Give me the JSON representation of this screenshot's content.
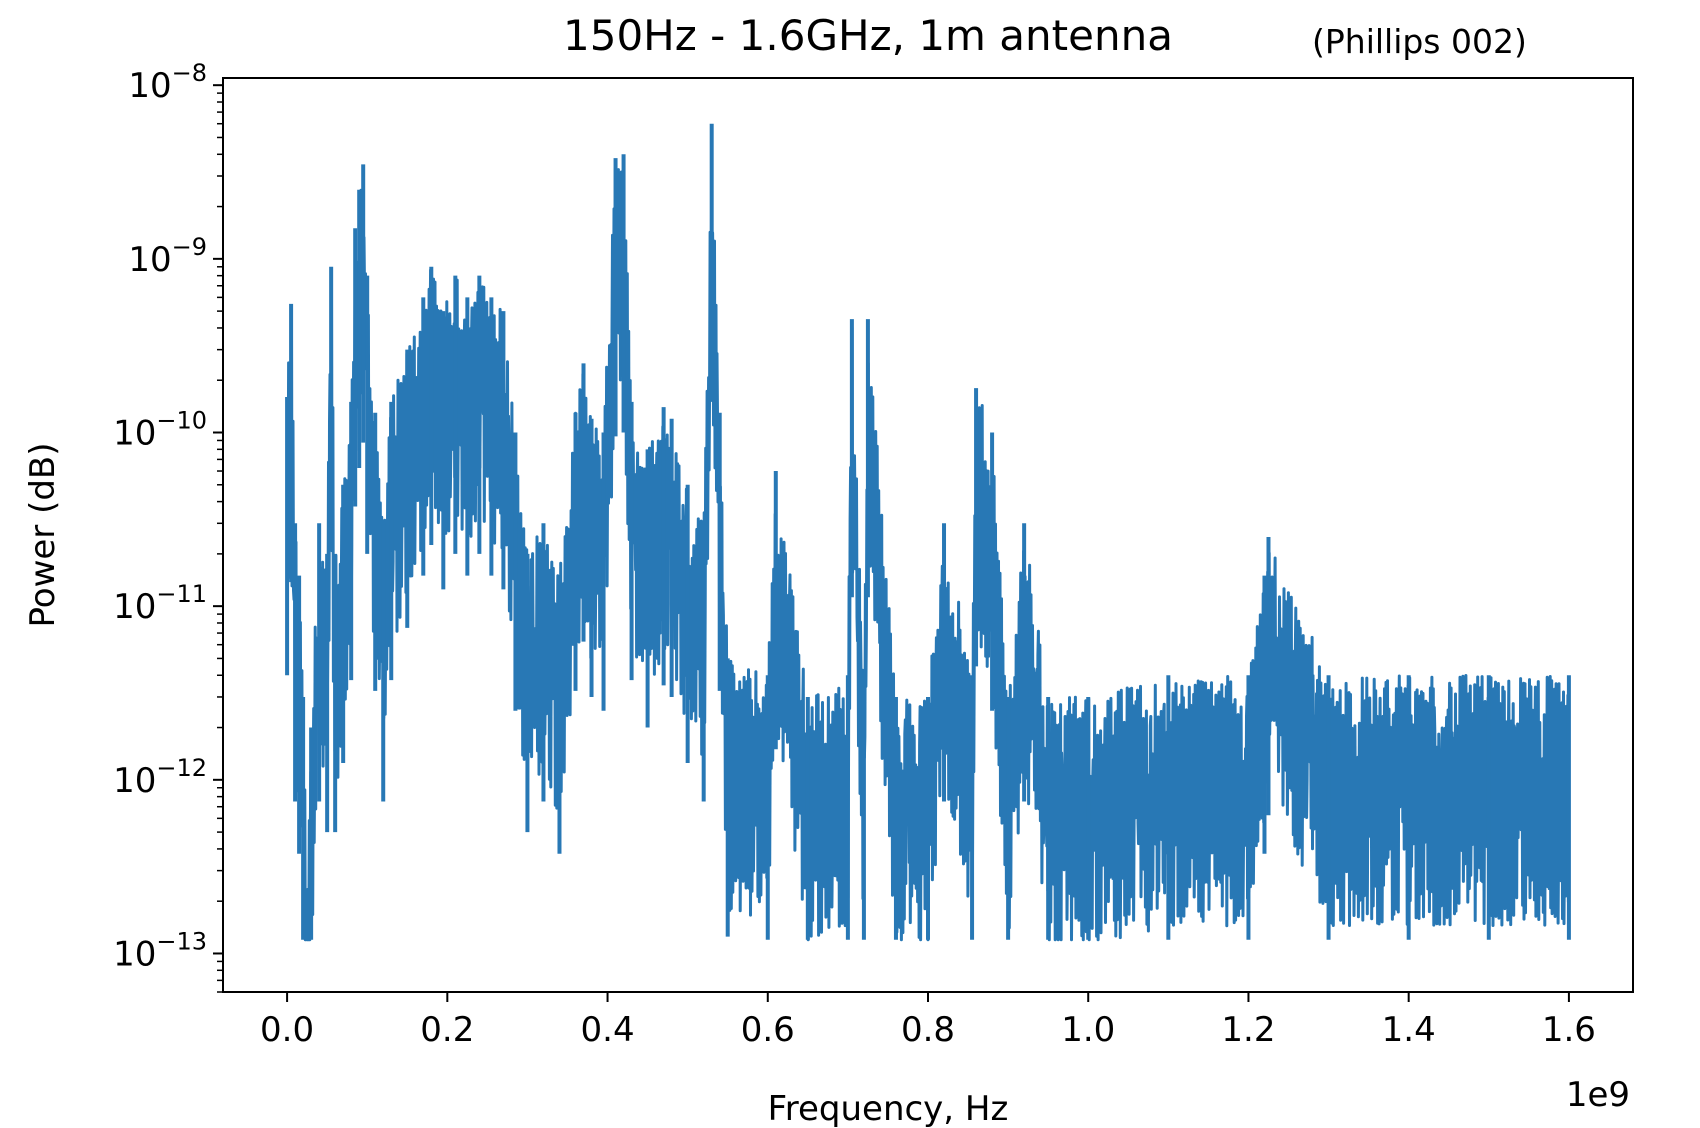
{
  "chart_data": {
    "type": "line",
    "title": "150Hz - 1.6GHz, 1m antenna",
    "subtitle": "(Phillips 002)",
    "xlabel": "Frequency, Hz",
    "ylabel": "Power (dB)",
    "x_offset_label": "1e9",
    "x_scale": "linear",
    "y_scale": "log",
    "xlim": [
      -80000000,
      1680000000
    ],
    "ylim": [
      6e-14,
      1.1e-08
    ],
    "x_ticks": [
      {
        "value": 0,
        "label": "0.0"
      },
      {
        "value": 200000000,
        "label": "0.2"
      },
      {
        "value": 400000000,
        "label": "0.4"
      },
      {
        "value": 600000000,
        "label": "0.6"
      },
      {
        "value": 800000000,
        "label": "0.8"
      },
      {
        "value": 1000000000,
        "label": "1.0"
      },
      {
        "value": 1200000000,
        "label": "1.2"
      },
      {
        "value": 1400000000,
        "label": "1.4"
      },
      {
        "value": 1600000000,
        "label": "1.6"
      }
    ],
    "y_ticks": [
      {
        "value": 1e-13,
        "base": "10",
        "exp": "−13"
      },
      {
        "value": 1e-12,
        "base": "10",
        "exp": "−12"
      },
      {
        "value": 1e-11,
        "base": "10",
        "exp": "−11"
      },
      {
        "value": 1e-10,
        "base": "10",
        "exp": "−10"
      },
      {
        "value": 1e-09,
        "base": "10",
        "exp": "−9"
      },
      {
        "value": 1e-08,
        "base": "10",
        "exp": "−8"
      }
    ],
    "grid": false,
    "line_color": "#2878b5",
    "series": [
      {
        "x": [
          0,
          5000000,
          10000000,
          15000000,
          20000000,
          25000000,
          30000000,
          40000000,
          50000000,
          55000000,
          60000000,
          70000000,
          80000000,
          85000000,
          90000000,
          95000000,
          100000000,
          110000000,
          120000000,
          130000000,
          150000000,
          170000000,
          180000000,
          195000000,
          210000000,
          225000000,
          240000000,
          255000000,
          270000000,
          285000000,
          300000000,
          320000000,
          340000000,
          360000000,
          370000000,
          380000000,
          395000000,
          410000000,
          420000000,
          430000000,
          450000000,
          470000000,
          480000000,
          500000000,
          520000000,
          530000000,
          540000000,
          550000000,
          600000000,
          610000000,
          650000000,
          700000000,
          705000000,
          720000000,
          725000000,
          760000000,
          800000000,
          820000000,
          855000000,
          860000000,
          880000000,
          900000000,
          920000000,
          950000000,
          1000000000,
          1100000000,
          1200000000,
          1220000000,
          1225000000,
          1300000000,
          1400000000,
          1500000000,
          1600000000
        ],
        "y": [
          1.6e-10,
          5.5e-10,
          3e-11,
          1.5e-11,
          3e-12,
          1.8e-13,
          2e-12,
          3e-11,
          2e-11,
          9e-10,
          2e-11,
          5e-11,
          1.5e-10,
          1.5e-09,
          2.5e-09,
          3.5e-09,
          8e-10,
          1.3e-10,
          3e-11,
          1.5e-10,
          3e-10,
          6e-10,
          9e-10,
          5e-10,
          8e-10,
          6e-10,
          8e-10,
          6e-10,
          5e-10,
          1e-10,
          2e-11,
          3e-11,
          1.5e-11,
          1.3e-10,
          2.5e-10,
          1.2e-10,
          1e-10,
          3.8e-09,
          4e-09,
          1.5e-10,
          8e-11,
          1.4e-10,
          1.2e-10,
          5e-11,
          3e-11,
          6e-09,
          1.3e-10,
          5e-12,
          4e-12,
          6e-11,
          3e-12,
          4e-12,
          4.5e-10,
          3e-12,
          4.5e-10,
          3e-12,
          3e-12,
          3e-11,
          4e-12,
          1.8e-10,
          1e-10,
          3e-12,
          3e-11,
          3e-12,
          3e-12,
          4e-12,
          4e-12,
          1.5e-11,
          2.5e-11,
          4e-12,
          4e-12,
          4e-12,
          4e-12
        ]
      }
    ]
  }
}
